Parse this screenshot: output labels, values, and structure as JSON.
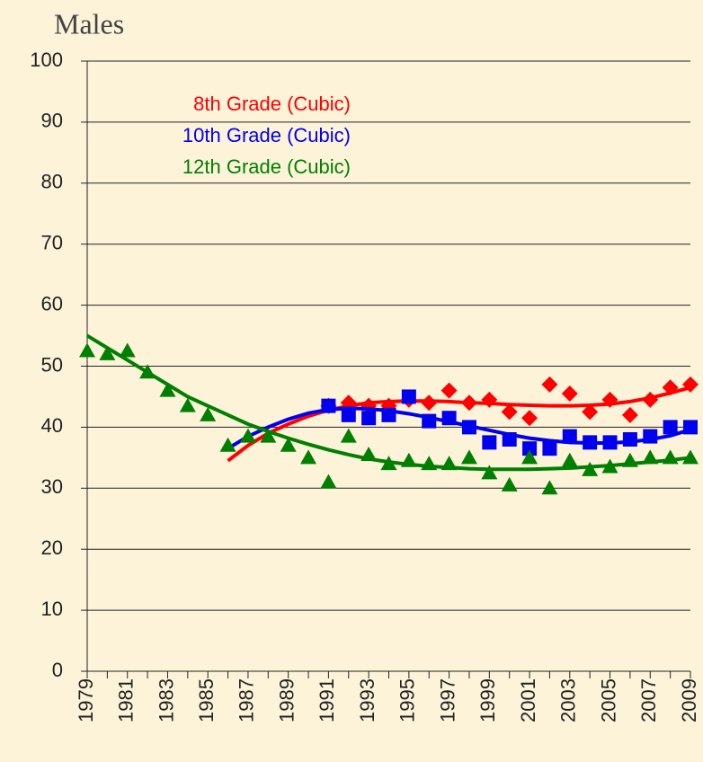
{
  "chart_data": {
    "type": "scatter",
    "title": "Males",
    "x": [
      1979,
      1980,
      1981,
      1982,
      1983,
      1984,
      1985,
      1986,
      1987,
      1988,
      1989,
      1990,
      1991,
      1992,
      1993,
      1994,
      1995,
      1996,
      1997,
      1998,
      1999,
      2000,
      2001,
      2002,
      2003,
      2004,
      2005,
      2006,
      2007,
      2008,
      2009
    ],
    "xlim": [
      1979,
      2009
    ],
    "xticks": [
      1979,
      1981,
      1983,
      1985,
      1987,
      1989,
      1991,
      1993,
      1995,
      1997,
      1999,
      2001,
      2003,
      2005,
      2007,
      2009
    ],
    "ylim": [
      0,
      100
    ],
    "yticks": [
      0,
      10,
      20,
      30,
      40,
      50,
      60,
      70,
      80,
      90,
      100
    ],
    "grid": true,
    "series": [
      {
        "name": "8th Grade (Cubic)",
        "color": "#ff0000",
        "marker": "diamond",
        "values": [
          null,
          null,
          null,
          null,
          null,
          null,
          null,
          null,
          null,
          null,
          null,
          null,
          43.5,
          44,
          43.5,
          43.5,
          44.5,
          44,
          46,
          44,
          44.5,
          42.5,
          41.5,
          47,
          45.5,
          42.5,
          44.5,
          42,
          44.5,
          46.5,
          47
        ],
        "fit": [
          null,
          null,
          null,
          null,
          null,
          null,
          null,
          34.5,
          37,
          39,
          40.5,
          41.8,
          42.8,
          43.5,
          44,
          44.2,
          44.3,
          44.3,
          44.2,
          44,
          43.9,
          43.7,
          43.6,
          43.5,
          43.5,
          43.6,
          43.8,
          44.2,
          44.8,
          45.6,
          46.5
        ]
      },
      {
        "name": "10th Grade (Cubic)",
        "color": "#0000ee",
        "marker": "square",
        "values": [
          null,
          null,
          null,
          null,
          null,
          null,
          null,
          null,
          null,
          null,
          null,
          null,
          43.5,
          42,
          41.5,
          42,
          45,
          41,
          41.5,
          40,
          37.5,
          38,
          36.5,
          36.5,
          38.5,
          37.5,
          37.5,
          38,
          38.5,
          40,
          40
        ],
        "fit": [
          null,
          null,
          null,
          null,
          null,
          null,
          null,
          36.5,
          38.5,
          40,
          41.3,
          42.3,
          42.9,
          43.1,
          43,
          42.7,
          42.2,
          41.6,
          40.9,
          40.2,
          39.5,
          38.8,
          38.2,
          37.8,
          37.5,
          37.4,
          37.4,
          37.6,
          38,
          38.6,
          39.6
        ]
      },
      {
        "name": "12th Grade (Cubic)",
        "color": "#008000",
        "marker": "triangle",
        "values": [
          52.5,
          52,
          52.5,
          49,
          46,
          43.5,
          42,
          37,
          38.5,
          38.5,
          37,
          35,
          31,
          38.5,
          35.5,
          34,
          34.5,
          34,
          34,
          35,
          32.5,
          30.5,
          35,
          30,
          34.5,
          33,
          33.5,
          34.5,
          35,
          35,
          35
        ],
        "fit": [
          55,
          53,
          51,
          49,
          47,
          45,
          43.5,
          42,
          40.5,
          39.3,
          38.2,
          37.2,
          36.3,
          35.5,
          34.8,
          34.3,
          33.9,
          33.6,
          33.4,
          33.2,
          33.1,
          33.1,
          33.1,
          33.2,
          33.3,
          33.5,
          33.7,
          34,
          34.3,
          34.6,
          35
        ]
      }
    ]
  }
}
